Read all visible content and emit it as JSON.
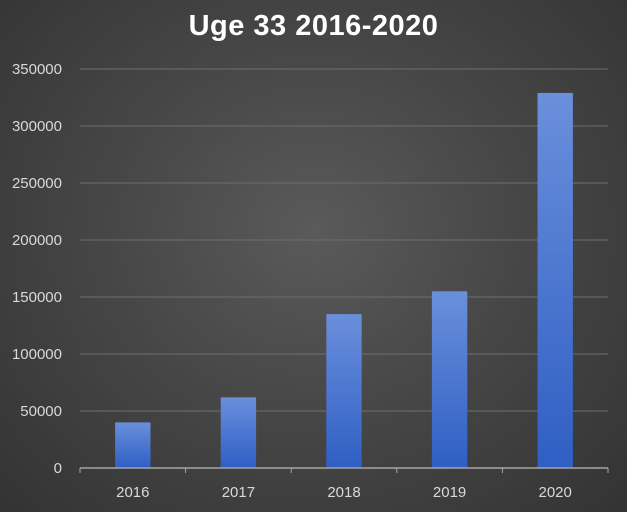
{
  "chart_data": {
    "type": "bar",
    "title": "Uge 33 2016-2020",
    "xlabel": "",
    "ylabel": "",
    "categories": [
      "2016",
      "2017",
      "2018",
      "2019",
      "2020"
    ],
    "values": [
      40000,
      62000,
      135000,
      155000,
      329000
    ],
    "ylim": [
      0,
      350000
    ],
    "yticks": [
      0,
      50000,
      100000,
      150000,
      200000,
      250000,
      300000,
      350000
    ],
    "ytick_labels": [
      "0",
      "50000",
      "100000",
      "150000",
      "200000",
      "250000",
      "300000",
      "350000"
    ],
    "grid": true,
    "legend": "none",
    "colors": {
      "background": "#404040",
      "bar_top": "#6a8fdb",
      "bar_bottom": "#2f5fc4",
      "gridline": "#6e6e6e",
      "axis": "#a6a6a6",
      "text": "#d9d9d9",
      "title": "#ffffff"
    }
  }
}
